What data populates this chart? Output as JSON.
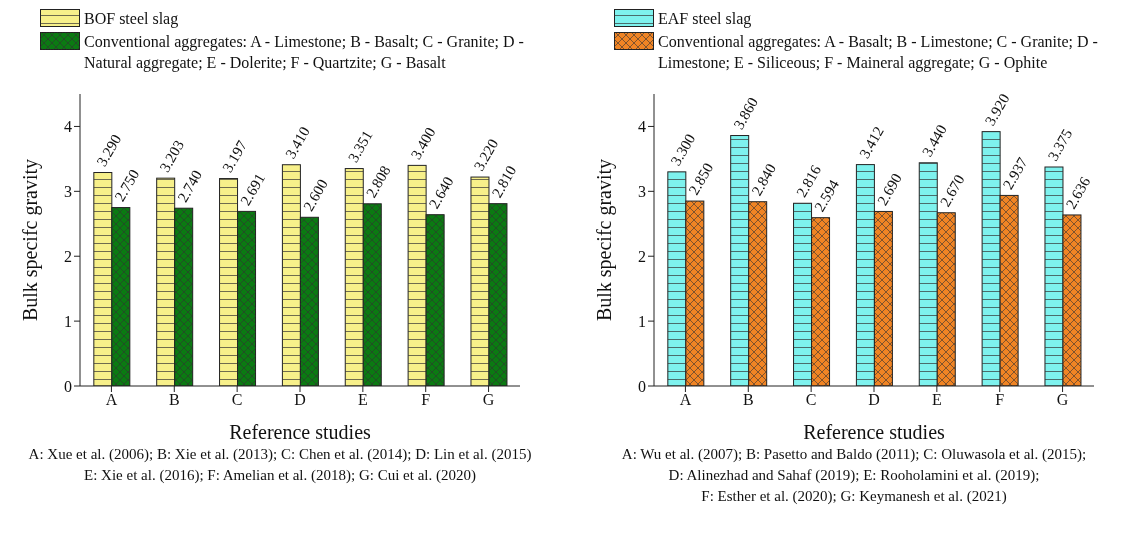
{
  "chart_data": [
    {
      "type": "bar",
      "xlabel": "Reference studies",
      "ylabel": "Bulk specifc gravity",
      "categories": [
        "A",
        "B",
        "C",
        "D",
        "E",
        "F",
        "G"
      ],
      "series": [
        {
          "name": "BOF steel slag",
          "color": "#f7f08a",
          "values": [
            3.29,
            3.203,
            3.197,
            3.41,
            3.351,
            3.4,
            3.22
          ],
          "value_labels": [
            "3.290",
            "3.203",
            "3.197",
            "3.410",
            "3.351",
            "3.400",
            "3.220"
          ]
        },
        {
          "name": "Conventional aggregates: A - Limestone; B - Basalt; C - Granite; D - Natural aggregate; E - Dolerite; F - Quartzite; G - Basalt",
          "color": "#0b7a12",
          "values": [
            2.75,
            2.74,
            2.691,
            2.6,
            2.808,
            2.64,
            2.81
          ],
          "value_labels": [
            "2.750",
            "2.740",
            "2.691",
            "2.600",
            "2.808",
            "2.640",
            "2.810"
          ]
        }
      ],
      "ylim": [
        0,
        4.5
      ],
      "yticks": [
        0,
        1,
        2,
        3,
        4
      ],
      "grid": false,
      "legend": "top left",
      "annotations": [
        "A: Xue et al. (2006); B: Xie et al. (2013); C: Chen et al. (2014); D: Lin et al. (2015)",
        "E: Xie et al. (2016); F: Amelian et al. (2018); G: Cui et al. (2020)"
      ]
    },
    {
      "type": "bar",
      "xlabel": "Reference studies",
      "ylabel": "Bulk specifc gravity",
      "categories": [
        "A",
        "B",
        "C",
        "D",
        "E",
        "F",
        "G"
      ],
      "series": [
        {
          "name": "EAF steel slag",
          "color": "#7ef2ee",
          "values": [
            3.3,
            3.86,
            2.816,
            3.412,
            3.44,
            3.92,
            3.375
          ],
          "value_labels": [
            "3.300",
            "3.860",
            "2.816",
            "3.412",
            "3.440",
            "3.920",
            "3.375"
          ]
        },
        {
          "name": "Conventional aggregates: A - Basalt; B - Limestone; C - Granite; D - Limestone; E - Siliceous; F - Maineral aggregate; G - Ophite",
          "color": "#f08424",
          "values": [
            2.85,
            2.84,
            2.594,
            2.69,
            2.67,
            2.937,
            2.636
          ],
          "value_labels": [
            "2.850",
            "2.840",
            "2.594",
            "2.690",
            "2.670",
            "2.937",
            "2.636"
          ]
        }
      ],
      "ylim": [
        0,
        4.5
      ],
      "yticks": [
        0,
        1,
        2,
        3,
        4
      ],
      "grid": false,
      "legend": "top left",
      "annotations": [
        "A: Wu et al. (2007); B: Pasetto and Baldo (2011); C: Oluwasola et al. (2015);",
        "D: Alinezhad and Sahaf (2019); E: Rooholamini et al. (2019);",
        "F: Esther et al. (2020); G: Keymanesh et al. (2021)"
      ]
    }
  ]
}
